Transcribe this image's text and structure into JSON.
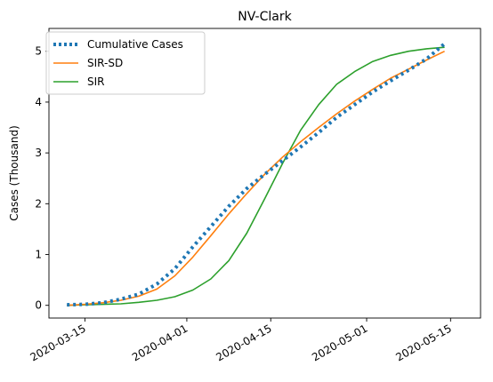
{
  "chart_data": {
    "type": "line",
    "title": "NV-Clark",
    "xlabel": "",
    "ylabel": "Cases (Thousand)",
    "x_axis_type": "date",
    "xlim": [
      "2020-03-09",
      "2020-05-20"
    ],
    "ylim": [
      -0.25,
      5.45
    ],
    "xticks": [
      "2020-03-15",
      "2020-04-01",
      "2020-04-15",
      "2020-05-01",
      "2020-05-15"
    ],
    "yticks": [
      0,
      1,
      2,
      3,
      4,
      5
    ],
    "grid": false,
    "legend_position": "upper-left",
    "series": [
      {
        "name": "Cumulative Cases",
        "style": "dotted",
        "color": "#1f77b4",
        "x": [
          "2020-03-12",
          "2020-03-15",
          "2020-03-18",
          "2020-03-21",
          "2020-03-24",
          "2020-03-27",
          "2020-03-30",
          "2020-04-02",
          "2020-04-05",
          "2020-04-08",
          "2020-04-11",
          "2020-04-14",
          "2020-04-17",
          "2020-04-20",
          "2020-04-23",
          "2020-04-26",
          "2020-04-29",
          "2020-05-02",
          "2020-05-05",
          "2020-05-08",
          "2020-05-11",
          "2020-05-14"
        ],
        "values": [
          0.01,
          0.02,
          0.05,
          0.12,
          0.22,
          0.42,
          0.72,
          1.15,
          1.55,
          1.95,
          2.3,
          2.58,
          2.85,
          3.12,
          3.4,
          3.7,
          3.95,
          4.2,
          4.42,
          4.63,
          4.85,
          5.15
        ]
      },
      {
        "name": "SIR-SD",
        "style": "solid",
        "color": "#ff7f0e",
        "x": [
          "2020-03-12",
          "2020-03-15",
          "2020-03-18",
          "2020-03-21",
          "2020-03-24",
          "2020-03-27",
          "2020-03-30",
          "2020-04-02",
          "2020-04-05",
          "2020-04-08",
          "2020-04-11",
          "2020-04-14",
          "2020-04-17",
          "2020-04-20",
          "2020-04-23",
          "2020-04-26",
          "2020-04-29",
          "2020-05-02",
          "2020-05-05",
          "2020-05-08",
          "2020-05-11",
          "2020-05-14"
        ],
        "values": [
          0.0,
          0.02,
          0.05,
          0.1,
          0.18,
          0.32,
          0.58,
          0.95,
          1.37,
          1.8,
          2.2,
          2.58,
          2.92,
          3.22,
          3.5,
          3.77,
          4.02,
          4.25,
          4.47,
          4.65,
          4.83,
          5.0
        ]
      },
      {
        "name": "SIR",
        "style": "solid",
        "color": "#2ca02c",
        "x": [
          "2020-03-12",
          "2020-03-15",
          "2020-03-18",
          "2020-03-21",
          "2020-03-24",
          "2020-03-27",
          "2020-03-30",
          "2020-04-02",
          "2020-04-05",
          "2020-04-08",
          "2020-04-11",
          "2020-04-14",
          "2020-04-17",
          "2020-04-20",
          "2020-04-23",
          "2020-04-26",
          "2020-04-29",
          "2020-05-02",
          "2020-05-05",
          "2020-05-08",
          "2020-05-11",
          "2020-05-14"
        ],
        "values": [
          0.0,
          0.01,
          0.02,
          0.03,
          0.06,
          0.1,
          0.17,
          0.3,
          0.52,
          0.88,
          1.42,
          2.1,
          2.8,
          3.45,
          3.95,
          4.35,
          4.6,
          4.8,
          4.92,
          5.0,
          5.05,
          5.08
        ]
      }
    ]
  }
}
